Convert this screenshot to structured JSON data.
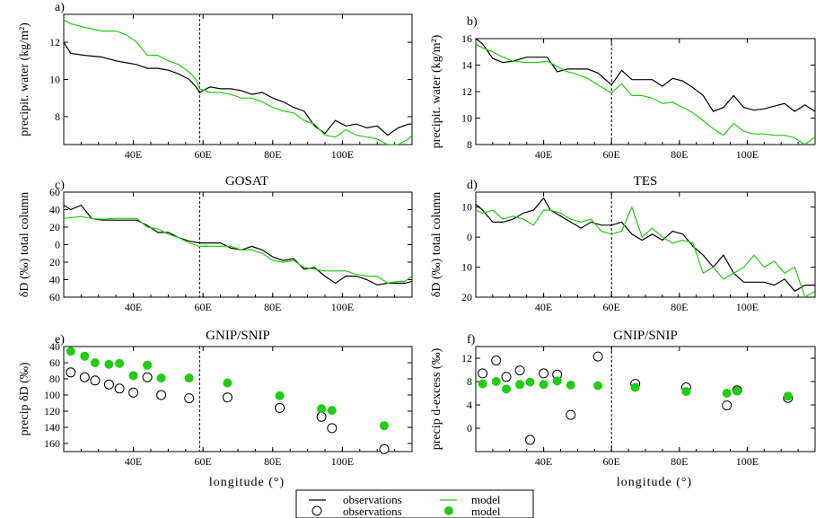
{
  "colors": {
    "observations": "#000000",
    "model": "#22cc11"
  },
  "legend": {
    "line_obs_label": "observations",
    "line_model_label": "model",
    "marker_obs_label": "observations",
    "marker_model_label": "model"
  },
  "chart_data": [
    {
      "id": "a",
      "panel_label": "a)",
      "title": "",
      "type": "line",
      "ylabel": "precipit. water (kg/m²)",
      "xlabel": "",
      "xlim": [
        20,
        120
      ],
      "ylim": [
        6.5,
        13.5
      ],
      "xticks": [
        {
          "v": 40,
          "label": "40E"
        },
        {
          "v": 60,
          "label": "60E"
        },
        {
          "v": 80,
          "label": "80E"
        },
        {
          "v": 100,
          "label": "100E"
        }
      ],
      "yticks": [
        {
          "v": 8,
          "label": "8"
        },
        {
          "v": 10,
          "label": "10"
        },
        {
          "v": 12,
          "label": "12"
        }
      ],
      "marker_line_x": 59,
      "series": [
        {
          "name": "observations",
          "color": "#000000",
          "x": [
            20,
            22,
            26,
            31,
            35,
            38,
            41,
            44,
            47,
            50,
            53,
            56,
            58,
            59,
            62,
            65,
            68,
            71,
            74,
            77,
            80,
            83,
            86,
            89,
            92,
            95,
            98,
            101,
            104,
            107,
            110,
            113,
            116,
            119,
            120
          ],
          "y": [
            12.0,
            11.4,
            11.3,
            11.2,
            11.0,
            10.9,
            10.8,
            10.6,
            10.6,
            10.5,
            10.3,
            10.0,
            9.6,
            9.3,
            9.6,
            9.5,
            9.5,
            9.4,
            9.2,
            9.3,
            9.0,
            8.8,
            8.5,
            8.3,
            7.5,
            7.1,
            7.8,
            7.5,
            7.6,
            7.4,
            7.5,
            7.0,
            7.4,
            7.6,
            7.6
          ]
        },
        {
          "name": "model",
          "color": "#22cc11",
          "x": [
            20,
            22,
            26,
            31,
            35,
            38,
            41,
            44,
            47,
            50,
            53,
            56,
            58,
            59,
            62,
            65,
            68,
            71,
            74,
            77,
            80,
            83,
            86,
            89,
            92,
            95,
            98,
            101,
            104,
            107,
            110,
            113,
            116,
            119,
            120
          ],
          "y": [
            13.2,
            13.0,
            12.8,
            12.6,
            12.6,
            12.4,
            12.0,
            11.3,
            11.3,
            11.0,
            10.8,
            10.4,
            10.0,
            9.5,
            9.3,
            9.3,
            9.2,
            9.0,
            9.0,
            8.8,
            8.5,
            8.3,
            8.2,
            7.8,
            7.6,
            7.0,
            6.9,
            7.3,
            7.0,
            6.9,
            6.8,
            6.5,
            6.5,
            6.8,
            7.0
          ]
        }
      ]
    },
    {
      "id": "b",
      "panel_label": "b)",
      "title": "",
      "type": "line",
      "ylabel": "precipit. water (kg/m²)",
      "xlabel": "",
      "xlim": [
        20,
        120
      ],
      "ylim": [
        8,
        16
      ],
      "xticks": [
        {
          "v": 40,
          "label": "40E"
        },
        {
          "v": 60,
          "label": "60E"
        },
        {
          "v": 80,
          "label": "80E"
        },
        {
          "v": 100,
          "label": "100E"
        }
      ],
      "yticks": [
        {
          "v": 8,
          "label": "8"
        },
        {
          "v": 10,
          "label": "10"
        },
        {
          "v": 12,
          "label": "12"
        },
        {
          "v": 14,
          "label": "14"
        },
        {
          "v": 16,
          "label": "16"
        }
      ],
      "marker_line_x": 60,
      "series": [
        {
          "name": "observations",
          "color": "#000000",
          "x": [
            20,
            22,
            25,
            28,
            31,
            35,
            38,
            41,
            44,
            47,
            50,
            53,
            56,
            60,
            63,
            66,
            69,
            72,
            75,
            78,
            81,
            84,
            87,
            90,
            93,
            96,
            99,
            102,
            105,
            108,
            111,
            114,
            117,
            120
          ],
          "y": [
            16.0,
            15.6,
            14.5,
            14.2,
            14.3,
            14.6,
            14.6,
            14.6,
            13.5,
            13.7,
            13.7,
            13.7,
            13.4,
            12.5,
            13.6,
            12.9,
            12.9,
            12.9,
            12.4,
            13.0,
            12.8,
            12.3,
            11.7,
            10.5,
            10.8,
            11.7,
            10.8,
            10.6,
            10.7,
            10.9,
            11.1,
            10.5,
            11.0,
            10.5
          ]
        },
        {
          "name": "model",
          "color": "#22cc11",
          "x": [
            20,
            22,
            25,
            28,
            31,
            35,
            38,
            41,
            44,
            47,
            50,
            53,
            56,
            60,
            63,
            66,
            69,
            72,
            75,
            78,
            81,
            84,
            87,
            90,
            93,
            96,
            99,
            102,
            105,
            108,
            111,
            114,
            117,
            120
          ],
          "y": [
            15.6,
            15.3,
            15.0,
            14.6,
            14.3,
            14.2,
            14.2,
            14.3,
            13.9,
            13.5,
            13.3,
            13.0,
            12.5,
            11.9,
            12.6,
            11.7,
            11.7,
            11.5,
            11.1,
            11.2,
            10.8,
            10.4,
            9.8,
            9.2,
            8.7,
            9.6,
            9.0,
            8.8,
            8.8,
            8.7,
            8.7,
            8.5,
            8.0,
            8.6
          ]
        }
      ]
    },
    {
      "id": "c",
      "panel_label": "c)",
      "title": "GOSAT",
      "type": "line",
      "ylabel": "δD (‰) total column",
      "xlabel": "",
      "xlim": [
        20,
        120
      ],
      "ylim": [
        60,
        -60
      ],
      "xticks": [
        {
          "v": 40,
          "label": "40E"
        },
        {
          "v": 60,
          "label": "60E"
        },
        {
          "v": 80,
          "label": "80E"
        },
        {
          "v": 100,
          "label": "100E"
        }
      ],
      "yticks": [
        {
          "v": -60,
          "label": "60"
        },
        {
          "v": -40,
          "label": "40"
        },
        {
          "v": -20,
          "label": "20"
        },
        {
          "v": 0,
          "label": "0"
        },
        {
          "v": 20,
          "label": "20"
        },
        {
          "v": 40,
          "label": "40"
        },
        {
          "v": 60,
          "label": "60"
        }
      ],
      "marker_line_x": 59,
      "series": [
        {
          "name": "observations",
          "color": "#000000",
          "x": [
            20,
            22,
            25,
            28,
            31,
            35,
            38,
            41,
            44,
            47,
            50,
            53,
            56,
            59,
            62,
            65,
            68,
            71,
            74,
            77,
            80,
            83,
            86,
            89,
            92,
            95,
            98,
            101,
            104,
            107,
            110,
            113,
            116,
            118,
            120
          ],
          "y": [
            -45,
            -40,
            -45,
            -30,
            -28,
            -28,
            -28,
            -28,
            -22,
            -14,
            -14,
            -8,
            -4,
            -2,
            -2,
            -2,
            4,
            6,
            2,
            6,
            14,
            18,
            16,
            28,
            26,
            36,
            44,
            36,
            36,
            40,
            46,
            44,
            44,
            44,
            42
          ]
        },
        {
          "name": "model",
          "color": "#22cc11",
          "x": [
            20,
            22,
            25,
            28,
            31,
            35,
            38,
            41,
            44,
            47,
            50,
            53,
            56,
            59,
            62,
            65,
            68,
            71,
            74,
            77,
            80,
            83,
            86,
            89,
            92,
            95,
            98,
            101,
            104,
            107,
            110,
            113,
            116,
            118,
            120
          ],
          "y": [
            -30,
            -31,
            -32,
            -30,
            -29,
            -30,
            -30,
            -30,
            -20,
            -18,
            -12,
            -8,
            -2,
            2,
            2,
            2,
            2,
            6,
            6,
            10,
            18,
            20,
            18,
            26,
            28,
            30,
            30,
            30,
            34,
            36,
            36,
            44,
            42,
            42,
            36
          ]
        }
      ]
    },
    {
      "id": "d",
      "panel_label": "d)",
      "title": "TES",
      "type": "line",
      "ylabel": "δD (‰) total column",
      "xlabel": "",
      "xlim": [
        20,
        120
      ],
      "ylim": [
        20,
        -15
      ],
      "xticks": [
        {
          "v": 40,
          "label": "40E"
        },
        {
          "v": 60,
          "label": "60E"
        },
        {
          "v": 80,
          "label": "80E"
        },
        {
          "v": 100,
          "label": "100E"
        }
      ],
      "yticks": [
        {
          "v": -10,
          "label": "10"
        },
        {
          "v": 0,
          "label": "0"
        },
        {
          "v": 10,
          "label": "10"
        },
        {
          "v": 20,
          "label": "20"
        }
      ],
      "marker_line_x": 60,
      "series": [
        {
          "name": "observations",
          "color": "#000000",
          "x": [
            20,
            22,
            25,
            28,
            31,
            34,
            37,
            40,
            42,
            45,
            48,
            51,
            54,
            57,
            60,
            63,
            66,
            69,
            72,
            75,
            78,
            81,
            84,
            87,
            90,
            93,
            96,
            99,
            102,
            105,
            108,
            111,
            114,
            117,
            120
          ],
          "y": [
            -11,
            -9,
            -5,
            -5,
            -6,
            -8,
            -9,
            -13,
            -9,
            -7,
            -5,
            -3,
            -5,
            -4,
            -4,
            -5,
            -1,
            1,
            -1,
            1,
            -2,
            -1,
            3,
            6,
            10,
            6,
            12,
            15,
            15,
            15,
            16,
            14,
            18,
            16,
            16
          ]
        },
        {
          "name": "model",
          "color": "#22cc11",
          "x": [
            20,
            22,
            25,
            28,
            31,
            34,
            37,
            40,
            42,
            45,
            48,
            51,
            54,
            57,
            60,
            63,
            66,
            69,
            72,
            75,
            78,
            81,
            84,
            87,
            90,
            93,
            96,
            99,
            102,
            105,
            108,
            111,
            114,
            117,
            120
          ],
          "y": [
            -9,
            -8,
            -9,
            -6,
            -7,
            -6,
            -4,
            -9,
            -9,
            -8,
            -6,
            -5,
            -6,
            -2,
            -1,
            -2,
            -10,
            0,
            -3,
            0,
            2,
            1,
            2,
            12,
            10,
            14,
            12,
            10,
            6,
            10,
            8,
            12,
            10,
            20,
            18
          ]
        }
      ]
    },
    {
      "id": "e",
      "panel_label": "e)",
      "title": "GNIP/SNIP",
      "type": "scatter",
      "ylabel": "precip δD (‰)",
      "xlabel": "longitude (°)",
      "xlim": [
        20,
        120
      ],
      "ylim": [
        40,
        170
      ],
      "xticks": [
        {
          "v": 40,
          "label": "40E"
        },
        {
          "v": 60,
          "label": "60E"
        },
        {
          "v": 80,
          "label": "80E"
        },
        {
          "v": 100,
          "label": "100E"
        }
      ],
      "yticks": [
        {
          "v": 40,
          "label": "40"
        },
        {
          "v": 60,
          "label": "60"
        },
        {
          "v": 80,
          "label": "80"
        },
        {
          "v": 100,
          "label": "100"
        },
        {
          "v": 120,
          "label": "120"
        },
        {
          "v": 140,
          "label": "140"
        },
        {
          "v": 160,
          "label": "160"
        }
      ],
      "marker_line_x": 59,
      "series": [
        {
          "name": "observations",
          "color": "#000000",
          "style": "open",
          "x": [
            22,
            26,
            29,
            33,
            36,
            40,
            44,
            48,
            56,
            67,
            82,
            94,
            97,
            112
          ],
          "y": [
            72,
            78,
            82,
            87,
            92,
            97,
            78,
            100,
            104,
            103,
            116,
            127,
            141,
            167
          ]
        },
        {
          "name": "model",
          "color": "#22cc11",
          "style": "filled",
          "x": [
            22,
            26,
            29,
            33,
            36,
            40,
            44,
            48,
            56,
            67,
            82,
            94,
            97,
            112
          ],
          "y": [
            46,
            52,
            60,
            62,
            61,
            76,
            63,
            79,
            79,
            85,
            101,
            117,
            119,
            138
          ]
        }
      ]
    },
    {
      "id": "f",
      "panel_label": "f)",
      "title": "GNIP/SNIP",
      "type": "scatter",
      "ylabel": "precip d-excess (‰)",
      "xlabel": "longitude (°)",
      "xlim": [
        20,
        120
      ],
      "ylim": [
        -4,
        14
      ],
      "xticks": [
        {
          "v": 40,
          "label": "40E"
        },
        {
          "v": 60,
          "label": "60E"
        },
        {
          "v": 80,
          "label": "80E"
        },
        {
          "v": 100,
          "label": "100E"
        }
      ],
      "yticks": [
        {
          "v": 0,
          "label": "0"
        },
        {
          "v": 4,
          "label": "4"
        },
        {
          "v": 8,
          "label": "8"
        },
        {
          "v": 12,
          "label": "12"
        }
      ],
      "marker_line_x": 60,
      "series": [
        {
          "name": "observations",
          "color": "#000000",
          "style": "open",
          "x": [
            22,
            26,
            29,
            33,
            36,
            40,
            44,
            48,
            56,
            67,
            82,
            94,
            97,
            112
          ],
          "y": [
            9.4,
            11.6,
            8.8,
            9.9,
            -2.0,
            9.4,
            9.2,
            2.3,
            12.3,
            7.6,
            7.0,
            3.9,
            6.5,
            5.2
          ]
        },
        {
          "name": "model",
          "color": "#22cc11",
          "style": "filled",
          "x": [
            22,
            26,
            29,
            33,
            36,
            40,
            44,
            48,
            56,
            67,
            82,
            94,
            97,
            112
          ],
          "y": [
            7.6,
            8.0,
            6.7,
            7.5,
            7.9,
            7.5,
            8.1,
            7.4,
            7.3,
            7.0,
            6.3,
            6.0,
            6.4,
            5.5
          ]
        }
      ]
    }
  ]
}
